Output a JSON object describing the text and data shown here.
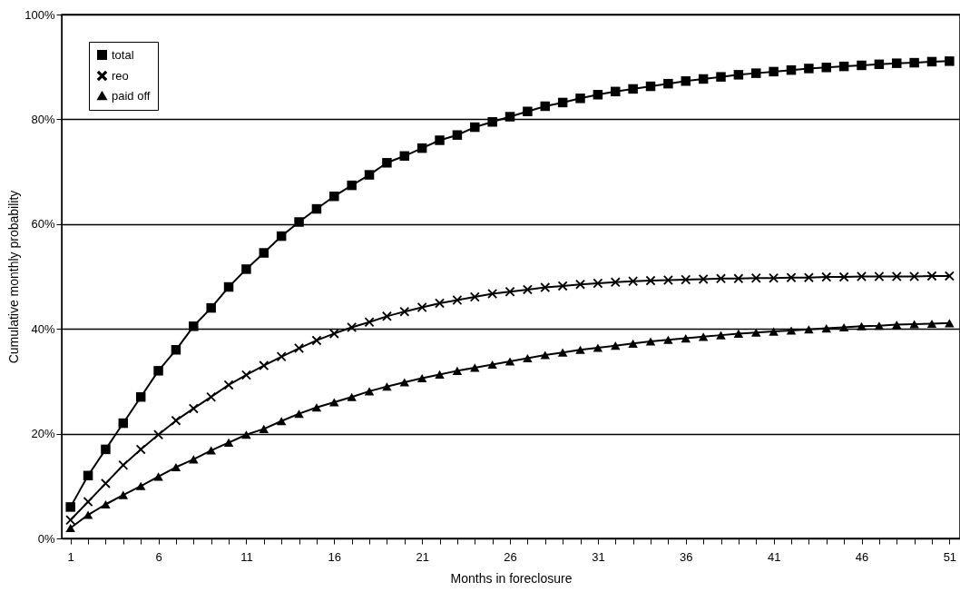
{
  "chart_data": {
    "type": "line",
    "xlabel": "Months in foreclosure",
    "ylabel": "Cumulative monthly probability",
    "x": [
      1,
      2,
      3,
      4,
      5,
      6,
      7,
      8,
      9,
      10,
      11,
      12,
      13,
      14,
      15,
      16,
      17,
      18,
      19,
      20,
      21,
      22,
      23,
      24,
      25,
      26,
      27,
      28,
      29,
      30,
      31,
      32,
      33,
      34,
      35,
      36,
      37,
      38,
      39,
      40,
      41,
      42,
      43,
      44,
      45,
      46,
      47,
      48,
      49,
      50,
      51
    ],
    "series": [
      {
        "name": "total",
        "color": "#000000",
        "marker": "square",
        "values": [
          6,
          12,
          17,
          22,
          27,
          32,
          36,
          40.5,
          44,
          48,
          51.4,
          54.5,
          57.7,
          60.4,
          62.9,
          65.3,
          67.4,
          69.4,
          71.7,
          73,
          74.5,
          76,
          77,
          78.5,
          79.5,
          80.5,
          81.5,
          82.5,
          83.2,
          84,
          84.7,
          85.3,
          85.8,
          86.3,
          86.8,
          87.3,
          87.7,
          88.1,
          88.5,
          88.8,
          89.1,
          89.4,
          89.7,
          89.9,
          90.1,
          90.3,
          90.5,
          90.7,
          90.8,
          91,
          91.1
        ]
      },
      {
        "name": "reo",
        "color": "#000000",
        "marker": "cross",
        "values": [
          3.5,
          7,
          10.5,
          14,
          17,
          19.8,
          22.5,
          24.8,
          27,
          29.3,
          31.2,
          33,
          34.7,
          36.3,
          37.8,
          39.1,
          40.3,
          41.3,
          42.4,
          43.3,
          44.1,
          44.9,
          45.5,
          46.1,
          46.7,
          47.1,
          47.5,
          47.9,
          48.2,
          48.5,
          48.7,
          48.9,
          49.1,
          49.2,
          49.3,
          49.4,
          49.5,
          49.6,
          49.6,
          49.7,
          49.7,
          49.8,
          49.8,
          49.9,
          49.9,
          50,
          50,
          50,
          50,
          50.1,
          50.1
        ]
      },
      {
        "name": "paid off",
        "color": "#000000",
        "marker": "triangle",
        "values": [
          2,
          4.5,
          6.5,
          8.3,
          10,
          11.8,
          13.6,
          15.1,
          16.8,
          18.3,
          19.8,
          20.9,
          22.4,
          23.8,
          25,
          26,
          27,
          28.1,
          29,
          29.8,
          30.6,
          31.3,
          32,
          32.6,
          33.2,
          33.8,
          34.4,
          35,
          35.5,
          36,
          36.4,
          36.8,
          37.2,
          37.6,
          37.9,
          38.2,
          38.5,
          38.8,
          39.1,
          39.3,
          39.5,
          39.7,
          39.9,
          40.1,
          40.3,
          40.5,
          40.6,
          40.8,
          40.9,
          41,
          41.1
        ]
      }
    ],
    "xlim": [
      0.5,
      51.6
    ],
    "xticks": [
      1,
      {
        "value": 2,
        "label": null
      },
      {
        "value": 3,
        "label": null
      },
      {
        "value": 4,
        "label": null
      },
      {
        "value": 5,
        "label": null
      },
      6,
      {
        "value": 7,
        "label": null
      },
      {
        "value": 8,
        "label": null
      },
      {
        "value": 9,
        "label": null
      },
      {
        "value": 10,
        "label": null
      },
      11,
      {
        "value": 12,
        "label": null
      },
      {
        "value": 13,
        "label": null
      },
      {
        "value": 14,
        "label": null
      },
      {
        "value": 15,
        "label": null
      },
      16,
      {
        "value": 17,
        "label": null
      },
      {
        "value": 18,
        "label": null
      },
      {
        "value": 19,
        "label": null
      },
      {
        "value": 20,
        "label": null
      },
      21,
      {
        "value": 22,
        "label": null
      },
      {
        "value": 23,
        "label": null
      },
      {
        "value": 24,
        "label": null
      },
      {
        "value": 25,
        "label": null
      },
      26,
      {
        "value": 27,
        "label": null
      },
      {
        "value": 28,
        "label": null
      },
      {
        "value": 29,
        "label": null
      },
      {
        "value": 30,
        "label": null
      },
      31,
      {
        "value": 32,
        "label": null
      },
      {
        "value": 33,
        "label": null
      },
      {
        "value": 34,
        "label": null
      },
      {
        "value": 35,
        "label": null
      },
      36,
      {
        "value": 37,
        "label": null
      },
      {
        "value": 38,
        "label": null
      },
      {
        "value": 39,
        "label": null
      },
      {
        "value": 40,
        "label": null
      },
      41,
      {
        "value": 42,
        "label": null
      },
      {
        "value": 43,
        "label": null
      },
      {
        "value": 44,
        "label": null
      },
      {
        "value": 45,
        "label": null
      },
      46,
      {
        "value": 47,
        "label": null
      },
      {
        "value": 48,
        "label": null
      },
      {
        "value": 49,
        "label": null
      },
      {
        "value": 50,
        "label": null
      },
      51
    ],
    "ylim": [
      0,
      100
    ],
    "yticks": [
      {
        "value": 0,
        "label": "0%"
      },
      {
        "value": 20,
        "label": "20%"
      },
      {
        "value": 40,
        "label": "40%"
      },
      {
        "value": 60,
        "label": "60%"
      },
      {
        "value": 80,
        "label": "80%"
      },
      {
        "value": 100,
        "label": "100%"
      }
    ],
    "grid": "y",
    "legend": "top left",
    "line_style": "solid"
  }
}
